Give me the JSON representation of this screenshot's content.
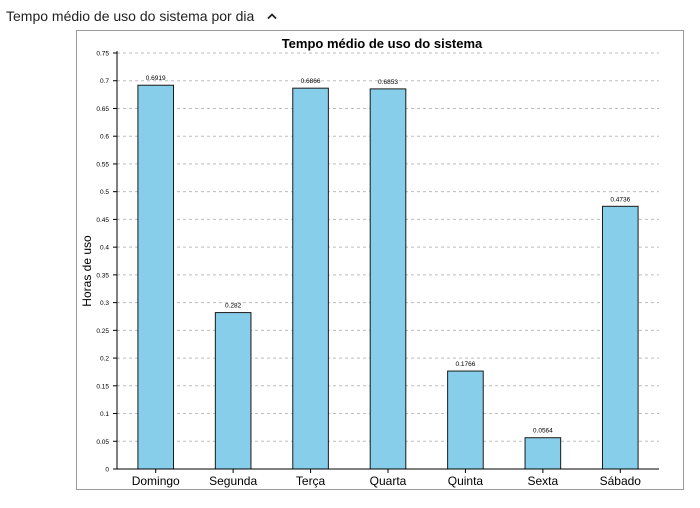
{
  "panel": {
    "title": "Tempo médio de uso do sistema por dia",
    "collapse_icon": "chevron-up-icon"
  },
  "colors": {
    "bar_fill": "#87CEEB",
    "bar_stroke": "#1a1a1a",
    "grid": "#bdbdbd"
  },
  "chart_data": {
    "type": "bar",
    "title": "Tempo médio de uso do sistema",
    "xlabel": "",
    "ylabel": "Horas de uso",
    "categories": [
      "Domingo",
      "Segunda",
      "Terça",
      "Quarta",
      "Quinta",
      "Sexta",
      "Sábado"
    ],
    "values": [
      0.6919,
      0.282,
      0.6866,
      0.6853,
      0.1766,
      0.0564,
      0.4736
    ],
    "value_labels": [
      "0.6919",
      "0.282",
      "0.6866",
      "0.6853",
      "0.1766",
      "0.0564",
      "0.4736"
    ],
    "ylim": [
      0,
      0.75
    ],
    "yticks": [
      "0",
      "0.05",
      "0.1",
      "0.15",
      "0.2",
      "0.25",
      "0.3",
      "0.35",
      "0.4",
      "0.45",
      "0.5",
      "0.55",
      "0.6",
      "0.65",
      "0.7",
      "0.75"
    ],
    "grid": true,
    "legend": "none"
  }
}
